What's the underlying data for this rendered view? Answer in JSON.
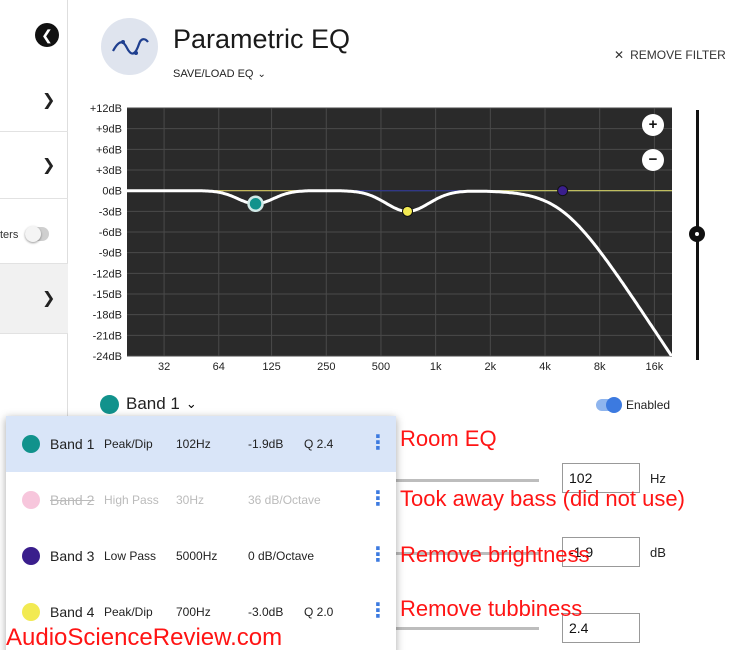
{
  "header": {
    "title": "Parametric EQ",
    "save_load_label": "SAVE/LOAD EQ",
    "remove_filter_label": "REMOVE FILTER"
  },
  "sidebar": {
    "partial_label": "ters"
  },
  "chart_data": {
    "type": "line",
    "title": "",
    "y_ticks": [
      "+12dB",
      "+9dB",
      "+6dB",
      "+3dB",
      "0dB",
      "-3dB",
      "-6dB",
      "-9dB",
      "-12dB",
      "-15dB",
      "-18dB",
      "-21dB",
      "-24dB"
    ],
    "x_ticks": [
      "32",
      "64",
      "125",
      "250",
      "500",
      "1k",
      "2k",
      "4k",
      "8k",
      "16k"
    ],
    "x_tick_hz": [
      32,
      64,
      125,
      250,
      500,
      1000,
      2000,
      4000,
      8000,
      16000
    ],
    "xscale": "log",
    "xlim": [
      20,
      20000
    ],
    "ylim": [
      -24,
      12
    ],
    "grid": true,
    "background": "#2a2a2a",
    "bands": [
      {
        "name": "Band 1",
        "type": "peak",
        "freq": 102,
        "gain": -1.9,
        "q": 2.4,
        "color": "#11928c",
        "enabled": true
      },
      {
        "name": "Band 2",
        "type": "highpass",
        "freq": 30,
        "gain": 0,
        "enabled": false,
        "color": "#f7c6dc"
      },
      {
        "name": "Band 3",
        "type": "lowpass",
        "freq": 5000,
        "gain": 0,
        "color": "#3a1e8c",
        "enabled": true
      },
      {
        "name": "Band 4",
        "type": "peak",
        "freq": 700,
        "gain": -3.0,
        "q": 2.0,
        "color": "#f2ea52",
        "enabled": true
      }
    ]
  },
  "band_selector": {
    "label": "Band 1",
    "color": "#11928c",
    "enabled_label": "Enabled"
  },
  "params": {
    "freq_value": "102",
    "freq_unit": "Hz",
    "gain_value": "-1.9",
    "gain_unit": "dB",
    "q_value": "2.4"
  },
  "dropdown": {
    "items": [
      {
        "name": "Band 1",
        "type": "Peak/Dip",
        "freq": "102Hz",
        "gain": "-1.9dB",
        "q": "Q 2.4",
        "color": "#11928c"
      },
      {
        "name": "Band 2",
        "type": "High Pass",
        "freq": "30Hz",
        "gain": "36 dB/Octave",
        "q": "",
        "color": "#f7c6dc"
      },
      {
        "name": "Band 3",
        "type": "Low Pass",
        "freq": "5000Hz",
        "gain": "0 dB/Octave",
        "q": "",
        "color": "#3a1e8c"
      },
      {
        "name": "Band 4",
        "type": "Peak/Dip",
        "freq": "700Hz",
        "gain": "-3.0dB",
        "q": "Q 2.0",
        "color": "#f2ea52"
      }
    ]
  },
  "annotations": {
    "band1": "Room EQ",
    "band2": "Took away bass (did not use)",
    "band3": "Remove brightness",
    "band4": "Remove tubbiness",
    "watermark": "AudioScienceReview.com"
  }
}
